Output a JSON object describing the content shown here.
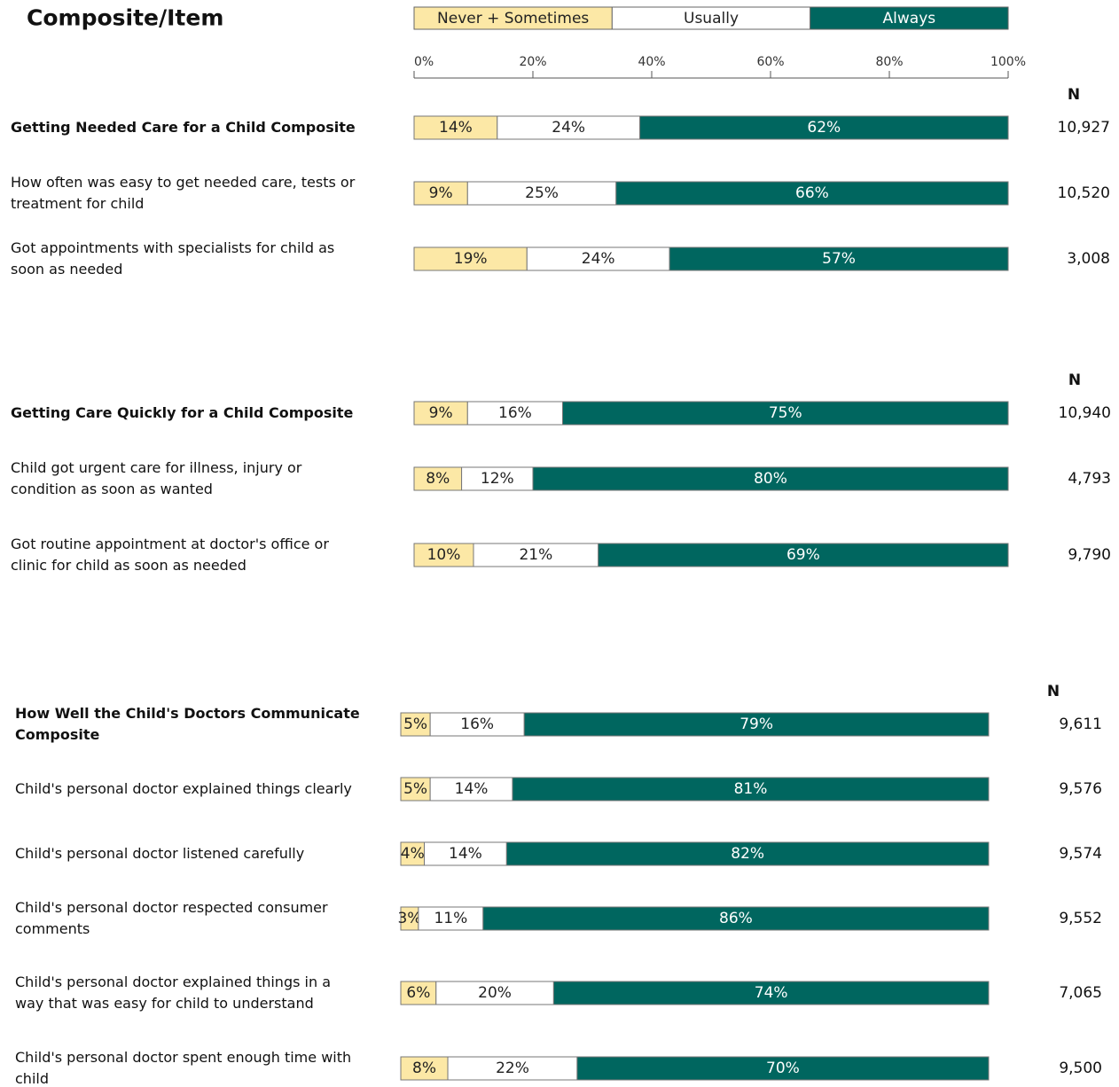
{
  "chart_data": [
    {
      "type": "bar",
      "orientation": "horizontal",
      "stacked": true,
      "title": "Composite/Item",
      "xlim": [
        0,
        100
      ],
      "xticks": [
        {
          "value": 0,
          "label": "0%"
        },
        {
          "value": 20,
          "label": "20%"
        },
        {
          "value": 40,
          "label": "40%"
        },
        {
          "value": 60,
          "label": "60%"
        },
        {
          "value": 80,
          "label": "80%"
        },
        {
          "value": 100,
          "label": "100%"
        }
      ],
      "categories": [
        "Getting Needed Care for a Child Composite",
        "How often was easy to get needed care, tests or treatment for child",
        "Got appointments with specialists for child as soon as needed"
      ],
      "series": [
        {
          "name": "Never + Sometimes",
          "color": "#fce8a6",
          "values": [
            14,
            9,
            19
          ],
          "value_labels": [
            "14%",
            "9%",
            "19%"
          ]
        },
        {
          "name": "Usually",
          "color": "#ffffff",
          "values": [
            24,
            25,
            24
          ],
          "value_labels": [
            "24%",
            "25%",
            "24%"
          ]
        },
        {
          "name": "Always",
          "color": "#00665f",
          "values": [
            62,
            66,
            57
          ],
          "value_labels": [
            "62%",
            "66%",
            "57%"
          ]
        }
      ],
      "n_header": "N",
      "n": [
        {
          "value": 10927,
          "label": "10,927"
        },
        {
          "value": 10520,
          "label": "10,520"
        },
        {
          "value": 3008,
          "label": "3,008"
        }
      ]
    },
    {
      "type": "bar",
      "orientation": "horizontal",
      "stacked": true,
      "xlim": [
        0,
        100
      ],
      "categories": [
        "Getting Care Quickly for a Child Composite",
        "Child got urgent care for illness, injury or condition as soon as wanted",
        "Got routine appointment at doctor's office or clinic for child as soon as needed"
      ],
      "series": [
        {
          "color": "#fce8a6",
          "values": [
            9,
            8,
            10
          ],
          "value_labels": [
            "9%",
            "8%",
            "10%"
          ]
        },
        {
          "color": "#ffffff",
          "values": [
            16,
            12,
            21
          ],
          "value_labels": [
            "16%",
            "12%",
            "21%"
          ]
        },
        {
          "color": "#00665f",
          "values": [
            75,
            80,
            69
          ],
          "value_labels": [
            "75%",
            "80%",
            "69%"
          ]
        }
      ],
      "n_header": "N",
      "n": [
        {
          "value": 10940,
          "label": "10,940"
        },
        {
          "value": 4793,
          "label": "4,793"
        },
        {
          "value": 9790,
          "label": "9,790"
        }
      ]
    },
    {
      "type": "bar",
      "orientation": "horizontal",
      "stacked": true,
      "xlim": [
        0,
        100
      ],
      "categories": [
        "How Well the Child's Doctors Communicate Composite",
        "Child's personal doctor explained things clearly",
        "Child's personal doctor listened carefully",
        "Child's personal doctor respected consumer comments",
        "Child's personal doctor explained things in a way that was easy for child to understand",
        "Child's personal doctor spent enough time with child"
      ],
      "series": [
        {
          "color": "#fce8a6",
          "values": [
            5,
            5,
            4,
            3,
            6,
            8
          ],
          "value_labels": [
            "5%",
            "5%",
            "4%",
            "3%",
            "6%",
            "8%"
          ]
        },
        {
          "color": "#ffffff",
          "values": [
            16,
            14,
            14,
            11,
            20,
            22
          ],
          "value_labels": [
            "16%",
            "14%",
            "14%",
            "11%",
            "20%",
            "22%"
          ]
        },
        {
          "color": "#00665f",
          "values": [
            79,
            81,
            82,
            86,
            74,
            70
          ],
          "value_labels": [
            "79%",
            "81%",
            "82%",
            "86%",
            "74%",
            "70%"
          ]
        }
      ],
      "n_header": "N",
      "n": [
        {
          "value": 9611,
          "label": "9,611"
        },
        {
          "value": 9576,
          "label": "9,576"
        },
        {
          "value": 9574,
          "label": "9,574"
        },
        {
          "value": 9552,
          "label": "9,552"
        },
        {
          "value": 7065,
          "label": "7,065"
        },
        {
          "value": 9500,
          "label": "9,500"
        }
      ]
    }
  ]
}
